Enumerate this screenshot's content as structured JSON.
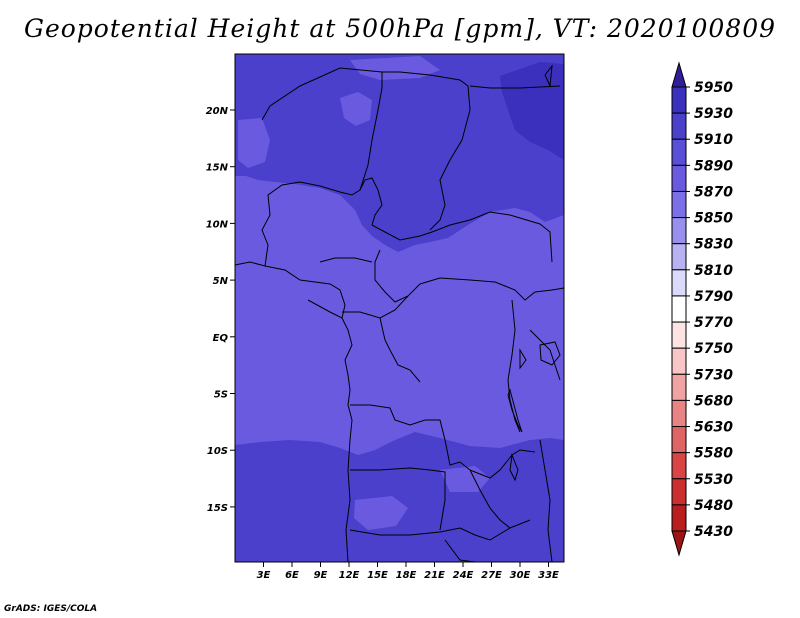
{
  "title": "Geopotential Height at 500hPa [gpm], VT: 2020100809",
  "credit": "GrADS: IGES/COLA",
  "colors": {
    "c5910": "#3b2fbd",
    "c5890": "#4a40cc",
    "c5870": "#6a5ae0",
    "border": "#000000"
  },
  "map": {
    "x_ticks": [
      "3E",
      "6E",
      "9E",
      "12E",
      "15E",
      "18E",
      "21E",
      "24E",
      "27E",
      "30E",
      "33E"
    ],
    "y_ticks": [
      "20N",
      "15N",
      "10N",
      "5N",
      "EQ",
      "5S",
      "10S",
      "15S"
    ]
  },
  "colorbar": {
    "levels": [
      "5950",
      "5930",
      "5910",
      "5890",
      "5870",
      "5850",
      "5830",
      "5810",
      "5790",
      "5770",
      "5750",
      "5730",
      "5680",
      "5630",
      "5580",
      "5530",
      "5480",
      "5430"
    ],
    "colors": [
      "#2f1e9a",
      "#3b2fbd",
      "#4a40cc",
      "#5a4fd8",
      "#6a5ae0",
      "#7b70e8",
      "#9990ee",
      "#b8b2f3",
      "#dcdafa",
      "#ffffff",
      "#fde3e3",
      "#f8c6c6",
      "#f0a3a3",
      "#e98484",
      "#e06464",
      "#d94545",
      "#cc2f2f",
      "#b81e1e",
      "#9c1414"
    ]
  }
}
